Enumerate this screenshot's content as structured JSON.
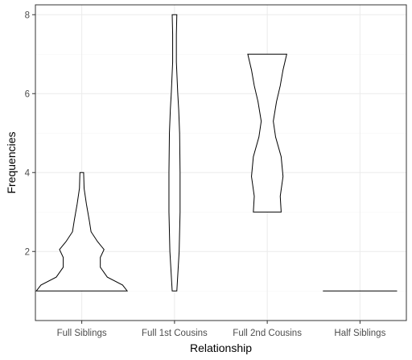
{
  "chart_data": {
    "type": "violin",
    "xlabel": "Relationship",
    "ylabel": "Frequencies",
    "categories": [
      "Full Siblings",
      "Full 1st Cousins",
      "Full 2nd Cousins",
      "Half Siblings"
    ],
    "ylim": [
      0.25,
      8.25
    ],
    "y_ticks": [
      2,
      4,
      6,
      8
    ],
    "grid": true,
    "theme": "bw",
    "violins": [
      {
        "category": "Full Siblings",
        "range": [
          1,
          4
        ],
        "profile": [
          [
            1,
            0.98
          ],
          [
            1.15,
            0.88
          ],
          [
            1.35,
            0.55
          ],
          [
            1.6,
            0.4
          ],
          [
            1.85,
            0.4
          ],
          [
            2.05,
            0.48
          ],
          [
            2.25,
            0.34
          ],
          [
            2.5,
            0.2
          ],
          [
            2.8,
            0.16
          ],
          [
            3.2,
            0.1
          ],
          [
            3.6,
            0.05
          ],
          [
            4,
            0.04
          ]
        ]
      },
      {
        "category": "Full 1st Cousins",
        "range": [
          1,
          8
        ],
        "profile": [
          [
            1,
            0.05
          ],
          [
            2,
            0.1
          ],
          [
            3,
            0.12
          ],
          [
            4,
            0.12
          ],
          [
            5,
            0.11
          ],
          [
            5.6,
            0.09
          ],
          [
            6,
            0.07
          ],
          [
            6.8,
            0.04
          ],
          [
            7.5,
            0.04
          ],
          [
            8,
            0.05
          ]
        ]
      },
      {
        "category": "Full 2nd Cousins",
        "range": [
          3,
          7
        ],
        "profile": [
          [
            3,
            0.3
          ],
          [
            3.4,
            0.28
          ],
          [
            3.9,
            0.34
          ],
          [
            4.4,
            0.3
          ],
          [
            4.9,
            0.18
          ],
          [
            5.3,
            0.13
          ],
          [
            5.8,
            0.2
          ],
          [
            6.2,
            0.28
          ],
          [
            6.6,
            0.34
          ],
          [
            7,
            0.42
          ]
        ]
      },
      {
        "category": "Half Siblings",
        "range": [
          1,
          1
        ],
        "profile": [
          [
            1,
            0.8
          ]
        ]
      }
    ]
  }
}
